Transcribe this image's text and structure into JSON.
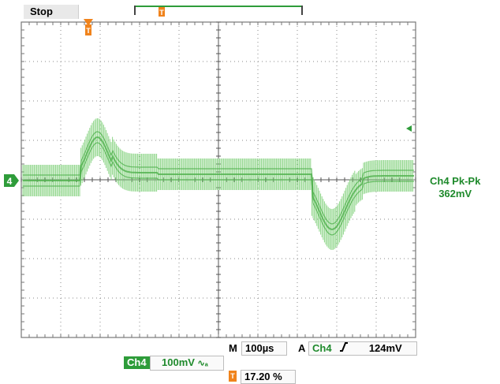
{
  "status": "Stop",
  "measurement": {
    "name": "Ch4 Pk-Pk",
    "value": "362mV"
  },
  "horizontal": {
    "label": "M",
    "timebase": "100µs"
  },
  "trigger": {
    "label": "A",
    "source": "Ch4",
    "slope_icon": "rising-edge-icon",
    "level": "124mV",
    "position": "17.20 %"
  },
  "channel": {
    "name": "Ch4",
    "scale": "100mV",
    "coupling_icon": "ac-coupling-icon",
    "marker": "4"
  },
  "colors": {
    "waveform": "#7ccf76",
    "channel": "#2e9c3a",
    "trigger": "#f0831c"
  }
}
